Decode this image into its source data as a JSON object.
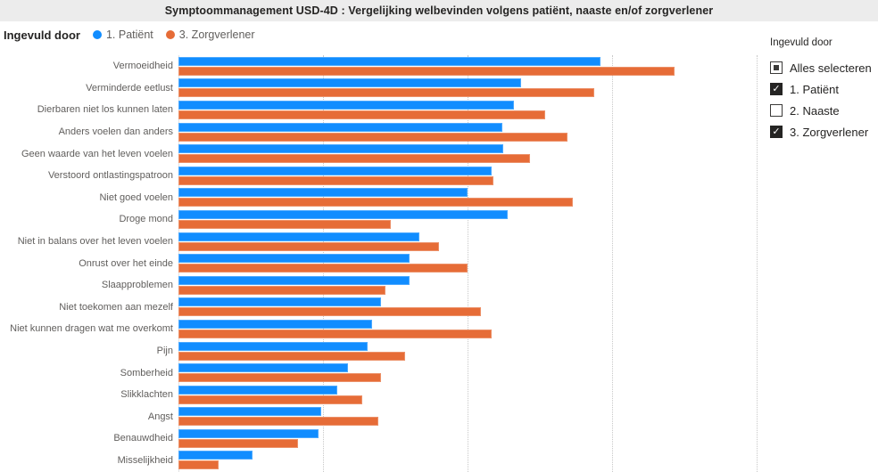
{
  "header": {
    "title": "Symptoommanagement USD-4D : Vergelijking welbevinden volgens patiënt, naaste en/of zorgverlener"
  },
  "legend": {
    "title": "Ingevuld door",
    "items": [
      {
        "label": "1. Patiënt",
        "color": "#118DFF"
      },
      {
        "label": "3. Zorgverlener",
        "color": "#E66C37"
      }
    ]
  },
  "filter_panel": {
    "title": "Ingevuld door",
    "items": [
      {
        "label": "Alles selecteren",
        "state": "indeterminate"
      },
      {
        "label": "1. Patiënt",
        "state": "checked"
      },
      {
        "label": "2. Naaste",
        "state": "unchecked"
      },
      {
        "label": "3. Zorgverlener",
        "state": "checked"
      }
    ]
  },
  "colors": {
    "patient_blue": "#118DFF",
    "zorgverlener_orange": "#E66C37",
    "title_bar_bg": "#ececec",
    "axis_text": "#605e5c",
    "gridline": "#c8c8c8"
  },
  "chart_data": {
    "type": "bar",
    "orientation": "horizontal",
    "title": "Symptoommanagement USD-4D : Vergelijking welbevinden volgens patiënt, naaste en/of zorgverlener",
    "legend_title": "Ingevuld door",
    "legend_position": "top-left",
    "grid": true,
    "xlim": [
      0,
      4.26
    ],
    "gridlines_at": [
      1,
      2,
      3,
      4
    ],
    "categories": [
      "Vermoeidheid",
      "Verminderde eetlust",
      "Dierbaren niet los kunnen laten",
      "Anders voelen dan anders",
      "Geen waarde van het leven voelen",
      "Verstoord ontlastingspatroon",
      "Niet goed voelen",
      "Droge mond",
      "Niet in balans over het leven voelen",
      "Onrust over het einde",
      "Slaapproblemen",
      "Niet toekomen aan mezelf",
      "Niet kunnen dragen wat me overkomt",
      "Pijn",
      "Somberheid",
      "Slikklachten",
      "Angst",
      "Benauwdheid",
      "Misselijkheid"
    ],
    "series": [
      {
        "name": "1. Patiënt",
        "color": "#118DFF",
        "values": [
          2.92,
          2.37,
          2.32,
          2.24,
          2.25,
          2.17,
          2.0,
          2.28,
          1.67,
          1.6,
          1.6,
          1.4,
          1.34,
          1.31,
          1.17,
          1.1,
          0.99,
          0.97,
          0.51
        ]
      },
      {
        "name": "3. Zorgverlener",
        "color": "#E66C37",
        "values": [
          3.43,
          2.88,
          2.54,
          2.69,
          2.43,
          2.18,
          2.73,
          1.47,
          1.8,
          2.0,
          1.43,
          2.09,
          2.17,
          1.57,
          1.4,
          1.27,
          1.38,
          0.83,
          0.28
        ]
      }
    ]
  }
}
